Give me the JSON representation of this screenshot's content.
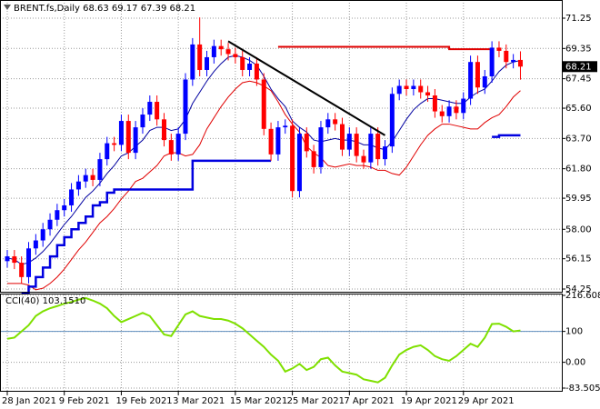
{
  "chart_data": [
    {
      "type": "candlestick",
      "title": "BRENT.fs,Daily  68.63 69.17 67.39 68.21",
      "categories": [
        "28 Jan 2021",
        null,
        null,
        null,
        null,
        null,
        null,
        null,
        "9 Feb 2021",
        null,
        null,
        null,
        null,
        null,
        null,
        null,
        "19 Feb 2021",
        null,
        null,
        null,
        null,
        null,
        null,
        null,
        "3 Mar 2021",
        null,
        null,
        null,
        null,
        null,
        null,
        null,
        "15 Mar 2021",
        null,
        null,
        null,
        null,
        null,
        null,
        null,
        "25 Mar 2021",
        null,
        null,
        null,
        null,
        null,
        null,
        null,
        "7 Apr 2021",
        null,
        null,
        null,
        null,
        null,
        null,
        null,
        "19 Apr 2021",
        null,
        null,
        null,
        null,
        null,
        null,
        null,
        "29 Apr 2021",
        null,
        null,
        null,
        null,
        null,
        null,
        null,
        null
      ],
      "open": [
        56.0,
        56.3,
        55.9,
        55.0,
        56.8,
        57.3,
        58.0,
        58.6,
        59.2,
        59.5,
        60.5,
        61.0,
        61.4,
        61.1,
        62.4,
        63.4,
        63.3,
        64.8,
        62.8,
        64.4,
        65.2,
        66.0,
        64.9,
        63.6,
        62.7,
        64.0,
        67.4,
        69.6,
        68.0,
        68.8,
        69.5,
        69.3,
        69.0,
        68.8,
        68.0,
        68.4,
        67.4,
        64.3,
        62.7,
        64.4,
        64.5,
        60.4,
        64.0,
        62.9,
        61.9,
        64.4,
        64.9,
        64.6,
        63.0,
        64.0,
        62.6,
        62.2,
        64.0,
        62.4,
        63.2,
        66.5,
        67.0,
        66.8,
        67.0,
        66.6,
        66.4,
        65.4,
        65.1,
        65.7,
        65.3,
        66.2,
        68.5,
        66.9,
        67.6,
        69.4,
        69.2,
        68.5,
        68.63
      ],
      "high": [
        56.7,
        56.7,
        56.3,
        57.2,
        57.7,
        58.4,
        59.0,
        59.6,
        59.9,
        60.9,
        61.4,
        61.8,
        61.8,
        62.8,
        63.8,
        63.8,
        65.2,
        65.2,
        64.8,
        65.6,
        66.4,
        66.4,
        65.3,
        64.0,
        64.4,
        67.8,
        70.0,
        71.3,
        69.2,
        69.9,
        69.9,
        69.7,
        69.4,
        69.2,
        68.8,
        68.8,
        67.8,
        64.7,
        64.8,
        64.9,
        64.9,
        64.4,
        64.4,
        63.3,
        64.8,
        65.3,
        65.3,
        65.0,
        64.4,
        64.4,
        63.0,
        64.4,
        64.4,
        63.6,
        66.9,
        67.4,
        67.4,
        67.4,
        67.4,
        67.0,
        66.8,
        65.8,
        66.1,
        66.1,
        66.6,
        68.9,
        68.9,
        68.0,
        69.8,
        69.8,
        69.6,
        69.0,
        69.17
      ],
      "low": [
        55.6,
        55.5,
        54.6,
        54.6,
        56.4,
        56.9,
        57.6,
        58.2,
        58.8,
        59.1,
        60.1,
        60.6,
        60.7,
        60.7,
        62.0,
        62.9,
        62.9,
        62.4,
        62.4,
        64.0,
        64.8,
        64.5,
        63.2,
        62.3,
        62.3,
        63.6,
        67.0,
        67.6,
        67.6,
        68.4,
        68.9,
        68.6,
        68.4,
        67.6,
        67.6,
        67.0,
        63.9,
        62.3,
        62.3,
        64.0,
        60.0,
        60.0,
        62.5,
        61.5,
        61.5,
        64.0,
        64.2,
        62.6,
        62.6,
        62.2,
        61.8,
        61.8,
        62.0,
        62.0,
        62.8,
        66.1,
        66.4,
        66.4,
        66.2,
        66.0,
        65.0,
        64.7,
        64.7,
        64.9,
        64.9,
        65.8,
        66.5,
        66.5,
        67.2,
        68.8,
        68.1,
        68.1,
        67.39
      ],
      "close": [
        56.3,
        55.9,
        55.0,
        56.8,
        57.3,
        58.0,
        58.6,
        59.2,
        59.5,
        60.5,
        61.0,
        61.4,
        61.1,
        62.4,
        63.4,
        63.3,
        64.8,
        62.8,
        64.4,
        65.2,
        66.0,
        64.9,
        63.6,
        62.7,
        64.0,
        67.4,
        69.6,
        68.0,
        68.8,
        69.5,
        69.3,
        69.0,
        68.8,
        68.0,
        68.4,
        67.4,
        64.3,
        62.7,
        64.4,
        64.5,
        60.4,
        64.0,
        62.9,
        61.9,
        64.4,
        64.9,
        64.6,
        63.0,
        64.0,
        62.6,
        62.2,
        64.0,
        62.4,
        63.2,
        66.5,
        67.0,
        66.8,
        67.0,
        66.6,
        66.4,
        65.4,
        65.1,
        65.7,
        65.3,
        66.2,
        68.5,
        66.9,
        67.6,
        69.4,
        69.2,
        68.5,
        68.63,
        68.21
      ],
      "bull_color": "#0000ff",
      "bear_color": "#ff0000",
      "series": [
        {
          "color": "#0000a0",
          "width": 1,
          "values": [
            56.2,
            56.1,
            55.8,
            55.9,
            56.2,
            56.6,
            57.1,
            57.7,
            58.3,
            58.8,
            59.4,
            60.0,
            60.4,
            60.9,
            61.5,
            62.0,
            62.6,
            62.8,
            63.2,
            63.6,
            64.2,
            64.4,
            64.4,
            64.2,
            64.3,
            64.9,
            65.9,
            66.6,
            67.3,
            67.9,
            68.4,
            68.8,
            68.9,
            68.8,
            68.6,
            68.3,
            67.6,
            66.8,
            66.2,
            65.7,
            64.8,
            64.4,
            64.1,
            63.6,
            63.5,
            63.6,
            63.7,
            63.6,
            63.6,
            63.5,
            63.3,
            63.3,
            63.1,
            63.0,
            63.5,
            64.2,
            64.9,
            65.5,
            65.9,
            66.2,
            66.2,
            66.1,
            66.0,
            65.9,
            65.9,
            66.3,
            66.6,
            66.8,
            67.3,
            67.9,
            68.3,
            68.5,
            68.6
          ]
        },
        {
          "color": "#e00000",
          "width": 1,
          "values": [
            54.6,
            54.6,
            54.6,
            54.5,
            54.2,
            54.3,
            54.6,
            55.0,
            55.5,
            56.1,
            56.7,
            57.2,
            57.8,
            58.4,
            58.8,
            59.3,
            59.9,
            60.4,
            61.0,
            61.2,
            61.6,
            62.0,
            62.6,
            62.8,
            62.8,
            62.6,
            62.7,
            63.3,
            64.3,
            65.0,
            65.7,
            66.3,
            66.8,
            67.2,
            67.3,
            67.2,
            67.0,
            66.7,
            66.0,
            65.2,
            64.6,
            64.1,
            63.2,
            62.8,
            62.5,
            62.0,
            61.9,
            62.0,
            62.1,
            62.0,
            62.0,
            61.9,
            61.7,
            61.7,
            61.5,
            61.4,
            61.9,
            62.6,
            63.3,
            63.9,
            64.3,
            64.6,
            64.6,
            64.5,
            64.4,
            64.3,
            64.3,
            64.7,
            65.0,
            65.2,
            65.7,
            66.3,
            66.7
          ]
        },
        {
          "color": "#0000e0",
          "width": 2.5,
          "step": true,
          "values": [
            null,
            null,
            54.0,
            54.4,
            55.0,
            55.6,
            56.3,
            57.0,
            57.5,
            58.0,
            58.4,
            58.8,
            59.5,
            59.7,
            60.3,
            60.5,
            60.5,
            60.5,
            60.5,
            60.5,
            60.5,
            60.5,
            60.5,
            60.5,
            60.5,
            60.5,
            62.3,
            62.3,
            62.3,
            62.3,
            62.3,
            62.3,
            62.3,
            62.3,
            62.3,
            62.3,
            62.3,
            62.3,
            null,
            null,
            null,
            null,
            null,
            null,
            null,
            null,
            null,
            null,
            null,
            null,
            null,
            null,
            null,
            null,
            null,
            null,
            null,
            null,
            null,
            null,
            null,
            null,
            null,
            null,
            null,
            null,
            null,
            null,
            63.8,
            63.9,
            63.9,
            63.9,
            63.9
          ]
        },
        {
          "color": "#e00000",
          "width": 2,
          "step": true,
          "values": [
            null,
            null,
            null,
            null,
            null,
            null,
            null,
            null,
            null,
            null,
            null,
            null,
            null,
            null,
            null,
            null,
            null,
            null,
            null,
            null,
            null,
            null,
            null,
            null,
            null,
            null,
            null,
            null,
            null,
            null,
            null,
            null,
            null,
            null,
            null,
            null,
            null,
            null,
            69.45,
            69.45,
            69.45,
            69.45,
            69.45,
            69.45,
            69.45,
            69.45,
            69.45,
            69.45,
            69.45,
            69.45,
            69.45,
            69.45,
            69.45,
            69.45,
            69.45,
            69.45,
            69.45,
            69.45,
            69.45,
            69.45,
            69.45,
            69.45,
            69.3,
            69.3,
            69.3,
            69.3,
            69.3,
            69.3,
            69.3,
            null,
            null,
            null,
            null
          ]
        }
      ],
      "trendline": {
        "x": [
          31,
          53
        ],
        "values": [
          69.8,
          63.9
        ],
        "color": "#000000"
      },
      "ylim": [
        54.25,
        71.25
      ],
      "yticks": [
        71.25,
        69.35,
        67.45,
        {
          "value": 65.6,
          "label": "65.60"
        },
        {
          "value": 63.7,
          "label": "63.70"
        },
        {
          "value": 61.8,
          "label": "61.80"
        },
        59.95,
        {
          "value": 58.0,
          "label": "58.00"
        },
        56.15,
        54.25
      ],
      "grid": true
    },
    {
      "type": "line",
      "title": "CCI(40) 103.1510",
      "series": [
        {
          "color": "#7fe000",
          "width": 2,
          "values": [
            76,
            80,
            100,
            120,
            150,
            165,
            175,
            182,
            190,
            195,
            203,
            208,
            200,
            190,
            175,
            150,
            130,
            140,
            150,
            160,
            150,
            120,
            90,
            85,
            120,
            155,
            165,
            150,
            145,
            140,
            140,
            135,
            125,
            110,
            90,
            70,
            50,
            25,
            5,
            -30,
            -20,
            -5,
            -25,
            -15,
            10,
            15,
            -10,
            -30,
            -35,
            -40,
            -55,
            -60,
            -65,
            -50,
            -10,
            25,
            40,
            50,
            55,
            40,
            20,
            10,
            5,
            20,
            40,
            60,
            50,
            80,
            124,
            125,
            115,
            100,
            103.151
          ]
        }
      ],
      "level": 100,
      "level_color": "#5f8fbf",
      "ylim": [
        -83.5053,
        216.608
      ],
      "yticks": [
        216.608,
        100,
        {
          "value": 0,
          "label": "0.00"
        },
        -83.5053
      ],
      "grid": true
    }
  ]
}
